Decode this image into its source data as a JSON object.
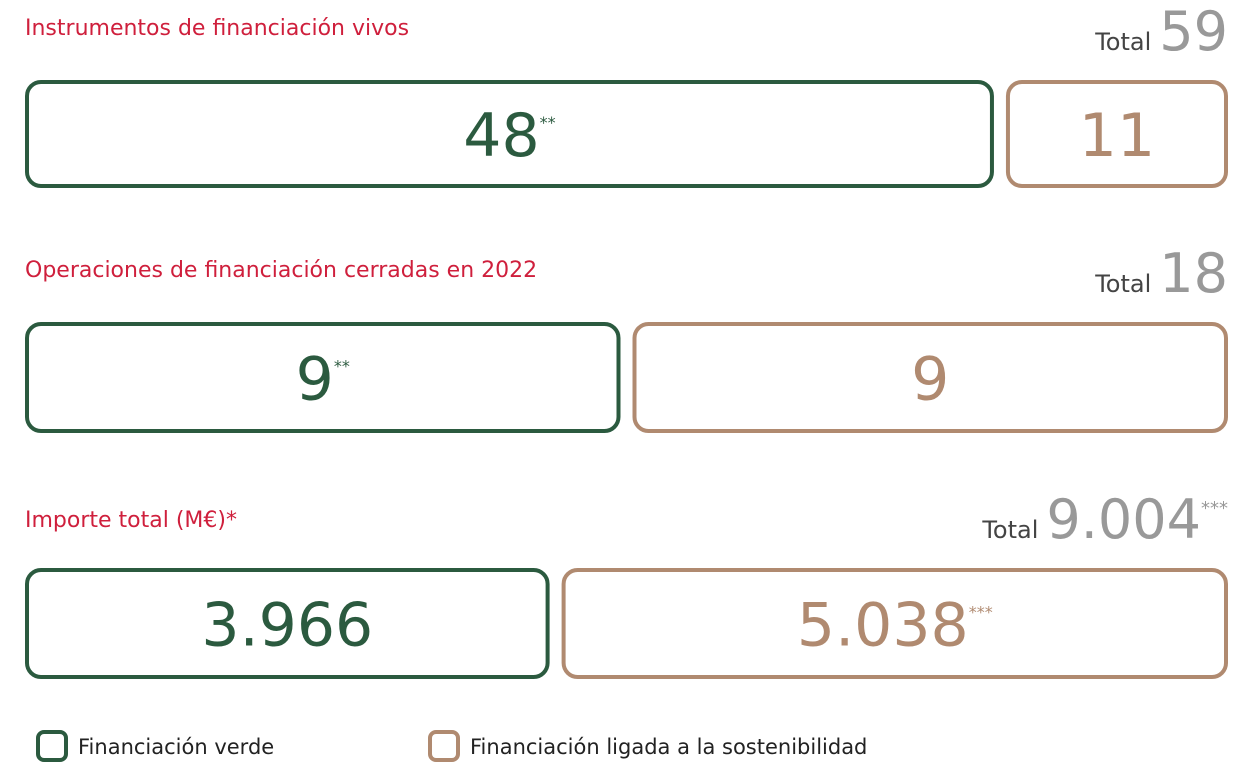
{
  "chart_data": [
    {
      "type": "proportion",
      "title": "Instrumentos de financiación vivos",
      "total_label": "Total",
      "total": 59,
      "values": [
        48,
        11
      ],
      "value_notes": [
        "**",
        null
      ]
    },
    {
      "type": "proportion",
      "title": "Operaciones de financiación cerradas en 2022",
      "total_label": "Total",
      "total": 18,
      "values": [
        9,
        9
      ],
      "value_notes": [
        "**",
        null
      ]
    },
    {
      "type": "proportion",
      "title": "Importe total  (M€)*",
      "total_label": "Total",
      "total": {
        "value": 9004,
        "label": "9.004"
      },
      "total_note": "***",
      "values": [
        3966,
        5038
      ],
      "value_labels": [
        "3.966",
        "5.038"
      ],
      "value_notes": [
        null,
        "***"
      ]
    }
  ],
  "legend": [
    {
      "name": "Financiación verde",
      "color": "#2b5a3f"
    },
    {
      "name": "Financiación ligada a la sostenibilidad",
      "color": "#b08a70"
    }
  ]
}
